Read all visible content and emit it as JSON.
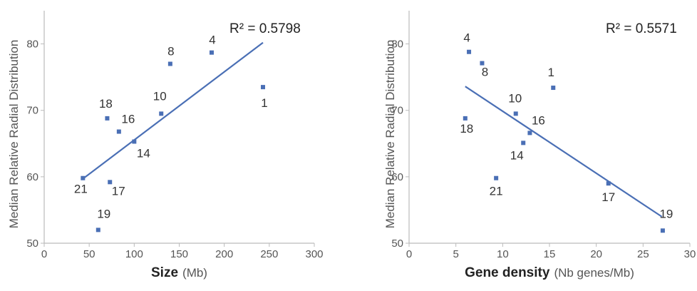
{
  "chart_data": [
    {
      "type": "scatter",
      "xlabel": "Size",
      "xlabel_unit": "(Mb)",
      "ylabel": "Median Relative Radial Distribution",
      "xlim": [
        0,
        300
      ],
      "ylim": [
        50,
        85
      ],
      "xticks": [
        0,
        50,
        100,
        150,
        200,
        250,
        300
      ],
      "yticks": [
        50,
        60,
        70,
        80
      ],
      "annotation": "R² = 0.5798",
      "marker_color": "#4a6fb5",
      "trendline_color": "#4a6fb5",
      "trendline": [
        [
          43,
          59.7
        ],
        [
          243,
          80.2
        ]
      ],
      "points": [
        {
          "label": "1",
          "x": 243,
          "y": 73.5
        },
        {
          "label": "4",
          "x": 186,
          "y": 78.7
        },
        {
          "label": "8",
          "x": 140,
          "y": 77.0
        },
        {
          "label": "10",
          "x": 130,
          "y": 69.5
        },
        {
          "label": "14",
          "x": 100,
          "y": 65.3
        },
        {
          "label": "16",
          "x": 83,
          "y": 66.8
        },
        {
          "label": "17",
          "x": 73,
          "y": 59.2
        },
        {
          "label": "18",
          "x": 70,
          "y": 68.8
        },
        {
          "label": "19",
          "x": 60,
          "y": 52.0
        },
        {
          "label": "21",
          "x": 43,
          "y": 59.8
        }
      ]
    },
    {
      "type": "scatter",
      "xlabel": "Gene density",
      "xlabel_unit": "(Nb genes/Mb)",
      "ylabel": "Median Relative Radial Distribution",
      "xlim": [
        0,
        30
      ],
      "ylim": [
        50,
        85
      ],
      "xticks": [
        0,
        5,
        10,
        15,
        20,
        25,
        30
      ],
      "yticks": [
        50,
        60,
        70,
        80
      ],
      "annotation": "R² = 0.5571",
      "marker_color": "#4a6fb5",
      "trendline_color": "#4a6fb5",
      "trendline": [
        [
          6,
          73.6
        ],
        [
          27,
          54.0
        ]
      ],
      "points": [
        {
          "label": "1",
          "x": 15.4,
          "y": 73.4
        },
        {
          "label": "4",
          "x": 6.4,
          "y": 78.8
        },
        {
          "label": "8",
          "x": 7.8,
          "y": 77.1
        },
        {
          "label": "10",
          "x": 11.4,
          "y": 69.5
        },
        {
          "label": "14",
          "x": 12.2,
          "y": 65.1
        },
        {
          "label": "16",
          "x": 12.9,
          "y": 66.6
        },
        {
          "label": "17",
          "x": 21.3,
          "y": 59.0
        },
        {
          "label": "18",
          "x": 6.0,
          "y": 68.8
        },
        {
          "label": "19",
          "x": 27.1,
          "y": 51.9
        },
        {
          "label": "21",
          "x": 9.3,
          "y": 59.8
        }
      ]
    }
  ]
}
